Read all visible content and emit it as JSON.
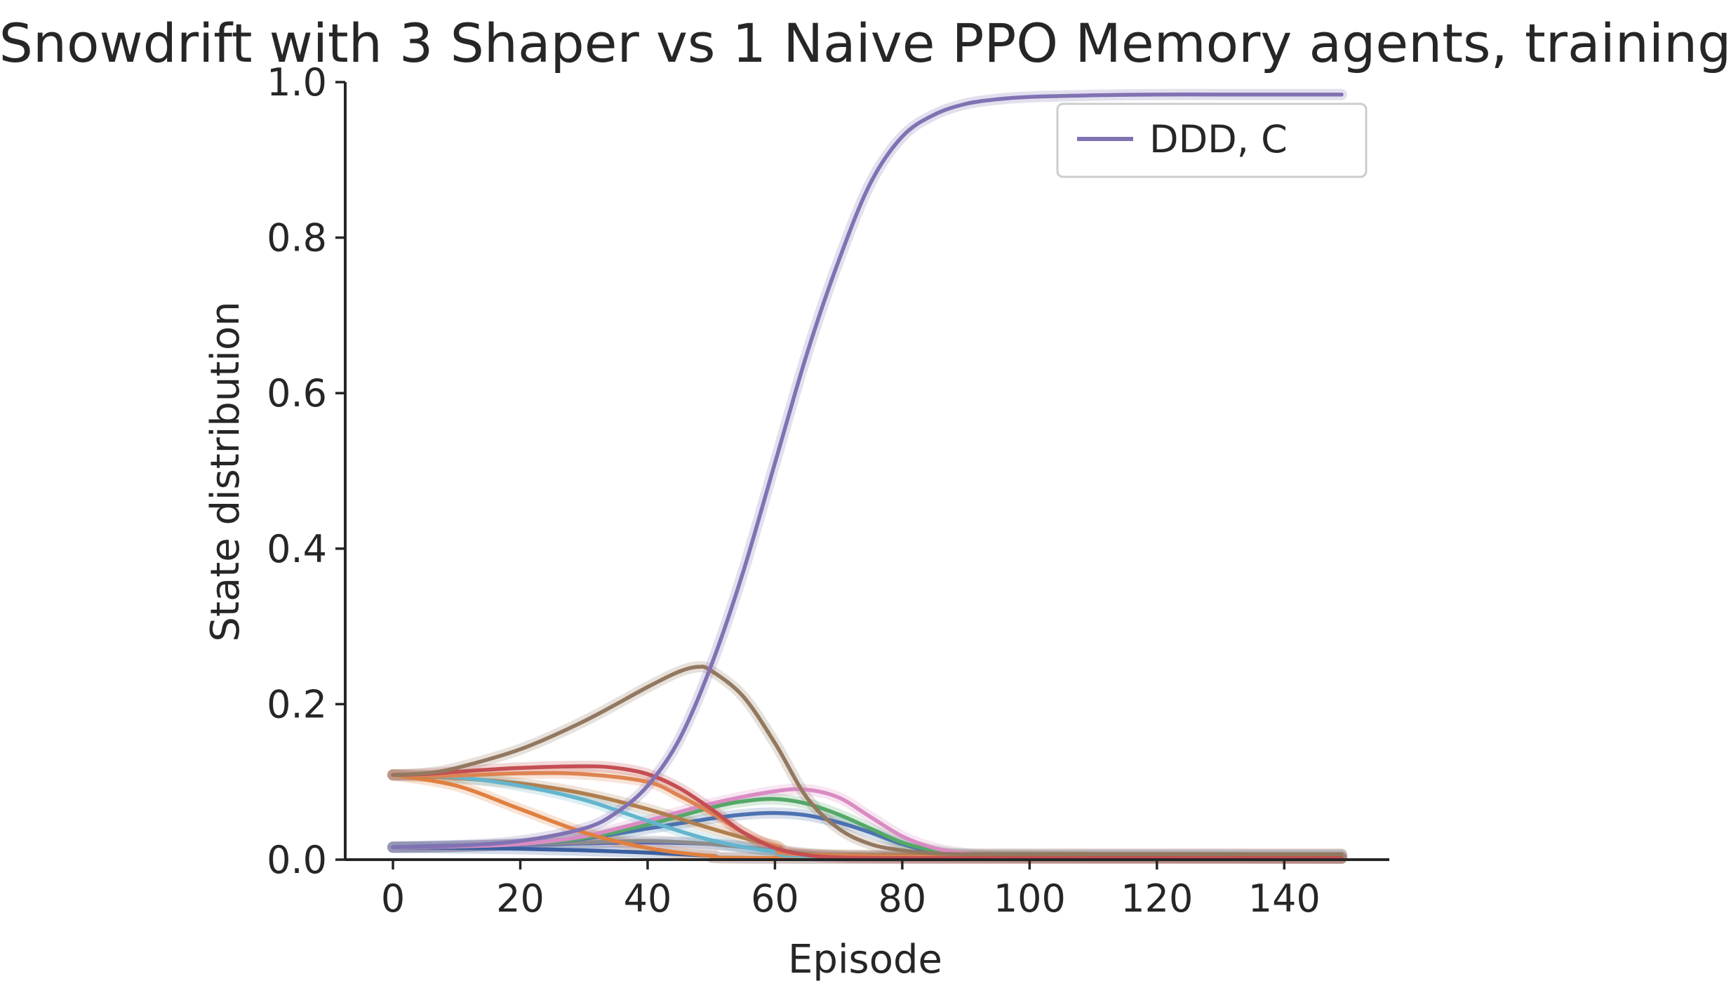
{
  "chart_data": {
    "type": "line",
    "title": "Snowdrift with 3 Shaper vs 1 Naive PPO Memory agents, training",
    "xlabel": "Episode",
    "ylabel": "State distribution",
    "xlim": [
      -7.5,
      156.5
    ],
    "ylim": [
      0,
      1.0
    ],
    "xticks": [
      0,
      20,
      40,
      60,
      80,
      100,
      120,
      140
    ],
    "yticks": [
      0.0,
      0.2,
      0.4,
      0.6,
      0.8,
      1.0
    ],
    "xtick_labels": [
      "0",
      "20",
      "40",
      "60",
      "80",
      "100",
      "120",
      "140"
    ],
    "ytick_labels": [
      "0.0",
      "0.2",
      "0.4",
      "0.6",
      "0.8",
      "1.0"
    ],
    "grid": false,
    "legend": {
      "placement": "top-right",
      "entries": [
        "DDD, C"
      ]
    },
    "series": [
      {
        "name": "DDD, C",
        "color": "#8172b3",
        "x": [
          0,
          10,
          20,
          30,
          35,
          40,
          45,
          50,
          55,
          60,
          65,
          70,
          75,
          80,
          85,
          90,
          95,
          100,
          110,
          120,
          130,
          140,
          149
        ],
        "y": [
          0.016,
          0.018,
          0.024,
          0.04,
          0.06,
          0.095,
          0.155,
          0.25,
          0.37,
          0.51,
          0.65,
          0.77,
          0.87,
          0.93,
          0.958,
          0.972,
          0.978,
          0.981,
          0.983,
          0.984,
          0.984,
          0.984,
          0.984
        ]
      },
      {
        "color": "#937860",
        "x": [
          0,
          5,
          10,
          20,
          30,
          40,
          45,
          48,
          50,
          55,
          60,
          65,
          70,
          75,
          80,
          85,
          90,
          100,
          120,
          149
        ],
        "y": [
          0.109,
          0.111,
          0.118,
          0.142,
          0.178,
          0.222,
          0.242,
          0.248,
          0.243,
          0.21,
          0.15,
          0.08,
          0.04,
          0.02,
          0.012,
          0.008,
          0.007,
          0.007,
          0.007,
          0.007
        ]
      },
      {
        "color": "#c44e52",
        "x": [
          0,
          5,
          10,
          20,
          30,
          35,
          40,
          45,
          50,
          55,
          60,
          65,
          70,
          80,
          90,
          149
        ],
        "y": [
          0.109,
          0.11,
          0.113,
          0.118,
          0.12,
          0.118,
          0.11,
          0.092,
          0.065,
          0.035,
          0.015,
          0.006,
          0.003,
          0.002,
          0.002,
          0.002
        ]
      },
      {
        "color": "#dd8452",
        "x": [
          0,
          5,
          10,
          20,
          30,
          40,
          45,
          50,
          55,
          60,
          70,
          149
        ],
        "y": [
          0.109,
          0.108,
          0.108,
          0.111,
          0.11,
          0.1,
          0.082,
          0.06,
          0.035,
          0.018,
          0.005,
          0.002
        ]
      },
      {
        "color": "#64b5cd",
        "x": [
          0,
          10,
          20,
          30,
          40,
          50,
          60,
          70,
          149
        ],
        "y": [
          0.109,
          0.106,
          0.095,
          0.077,
          0.05,
          0.025,
          0.01,
          0.004,
          0.002
        ]
      },
      {
        "color": "#b07f4f",
        "x": [
          0,
          10,
          20,
          30,
          40,
          50,
          60,
          70,
          149
        ],
        "y": [
          0.109,
          0.105,
          0.098,
          0.085,
          0.065,
          0.04,
          0.018,
          0.006,
          0.002
        ]
      },
      {
        "color": "#e08040",
        "x": [
          0,
          10,
          20,
          30,
          40,
          50,
          60,
          149
        ],
        "y": [
          0.109,
          0.095,
          0.065,
          0.035,
          0.015,
          0.005,
          0.002,
          0.002
        ]
      },
      {
        "color": "#da8bc3",
        "x": [
          0,
          10,
          20,
          30,
          40,
          50,
          60,
          65,
          70,
          75,
          80,
          85,
          90,
          95,
          100,
          149
        ],
        "y": [
          0.016,
          0.017,
          0.02,
          0.03,
          0.05,
          0.072,
          0.088,
          0.09,
          0.08,
          0.055,
          0.03,
          0.015,
          0.008,
          0.007,
          0.007,
          0.007
        ]
      },
      {
        "color": "#55a868",
        "x": [
          0,
          10,
          20,
          30,
          40,
          50,
          55,
          60,
          65,
          70,
          75,
          80,
          85,
          90,
          100,
          149
        ],
        "y": [
          0.016,
          0.017,
          0.02,
          0.028,
          0.045,
          0.067,
          0.075,
          0.078,
          0.072,
          0.058,
          0.04,
          0.022,
          0.012,
          0.007,
          0.006,
          0.006
        ]
      },
      {
        "color": "#4c72b0",
        "x": [
          0,
          10,
          20,
          30,
          40,
          50,
          55,
          60,
          65,
          70,
          75,
          80,
          85,
          90,
          100,
          149
        ],
        "y": [
          0.016,
          0.017,
          0.02,
          0.027,
          0.04,
          0.053,
          0.058,
          0.06,
          0.057,
          0.048,
          0.035,
          0.02,
          0.01,
          0.006,
          0.005,
          0.005
        ]
      },
      {
        "color": "#8c8c8c",
        "x": [
          0,
          10,
          20,
          30,
          40,
          50,
          60,
          70,
          80,
          149
        ],
        "y": [
          0.016,
          0.017,
          0.02,
          0.022,
          0.024,
          0.02,
          0.012,
          0.005,
          0.003,
          0.003
        ]
      },
      {
        "color": "#5a66b5",
        "x": [
          0,
          10,
          20,
          30,
          40,
          50,
          60,
          70,
          149
        ],
        "y": [
          0.016,
          0.018,
          0.019,
          0.021,
          0.022,
          0.02,
          0.012,
          0.005,
          0.002
        ]
      },
      {
        "color": "#3b5fa0",
        "x": [
          0,
          10,
          20,
          30,
          40,
          50,
          60,
          149
        ],
        "y": [
          0.016,
          0.015,
          0.014,
          0.012,
          0.009,
          0.005,
          0.002,
          0.002
        ]
      }
    ]
  }
}
